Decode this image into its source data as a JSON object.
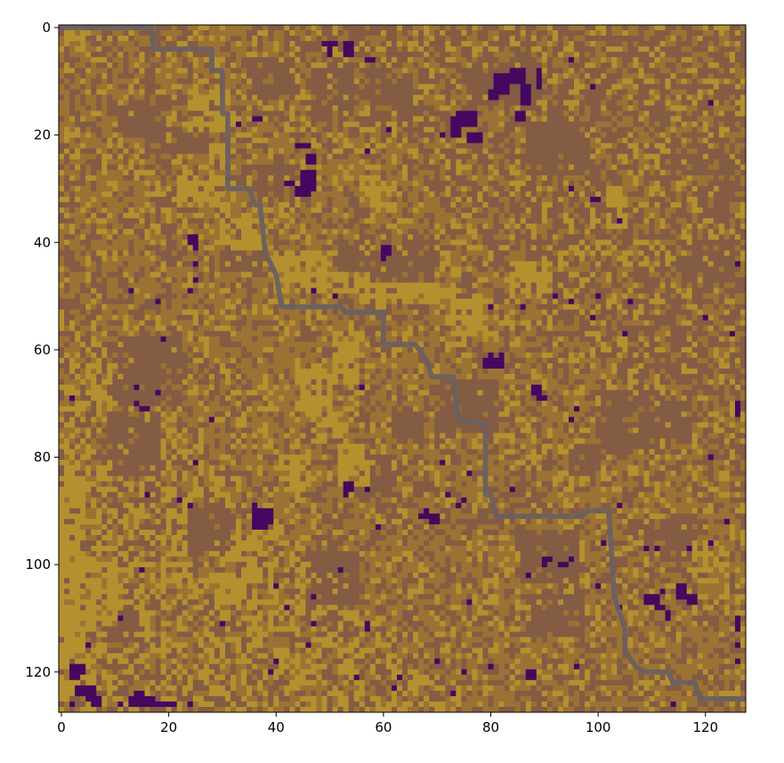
{
  "chart_data": {
    "type": "heatmap",
    "title": "",
    "xlabel": "",
    "ylabel": "",
    "grid_size": [
      128,
      128
    ],
    "xlim": [
      0,
      127
    ],
    "ylim": [
      127,
      0
    ],
    "x_ticks": [
      0,
      20,
      40,
      60,
      80,
      100,
      120
    ],
    "y_ticks": [
      0,
      20,
      40,
      60,
      80,
      100,
      120
    ],
    "x_tick_labels": [
      "0",
      "20",
      "40",
      "60",
      "80",
      "100",
      "120"
    ],
    "y_tick_labels": [
      "0",
      "20",
      "40",
      "60",
      "80",
      "100",
      "120"
    ],
    "grid": false,
    "legend": "none",
    "colors": {
      "light": "#b5902f",
      "mid": "#9c7234",
      "dark": "#835c43",
      "obstacle": "#45085f",
      "path": "#6a6062"
    },
    "path": {
      "points": [
        [
          0,
          0
        ],
        [
          17,
          0
        ],
        [
          17,
          4
        ],
        [
          28,
          4
        ],
        [
          28,
          8
        ],
        [
          30,
          8
        ],
        [
          30,
          16
        ],
        [
          31,
          16
        ],
        [
          31,
          30
        ],
        [
          35,
          30
        ],
        [
          36,
          33
        ],
        [
          37,
          33
        ],
        [
          38,
          42
        ],
        [
          40,
          46
        ],
        [
          41,
          52
        ],
        [
          52,
          52
        ],
        [
          53,
          53
        ],
        [
          60,
          53
        ],
        [
          60,
          59
        ],
        [
          66,
          59
        ],
        [
          68,
          62
        ],
        [
          69,
          65
        ],
        [
          73,
          65
        ],
        [
          74,
          73
        ],
        [
          79,
          74
        ],
        [
          79,
          87
        ],
        [
          80,
          87
        ],
        [
          81,
          91
        ],
        [
          97,
          91
        ],
        [
          98,
          90
        ],
        [
          102,
          90
        ],
        [
          103,
          106
        ],
        [
          105,
          112
        ],
        [
          105,
          116
        ],
        [
          107,
          119
        ],
        [
          109,
          120
        ],
        [
          113,
          120
        ],
        [
          114,
          122
        ],
        [
          118,
          122
        ],
        [
          119,
          125
        ],
        [
          127,
          125
        ]
      ]
    },
    "regions": {
      "dark": [
        [
          10,
          14,
          10,
          7
        ],
        [
          16,
          19,
          12,
          5
        ],
        [
          35,
          6,
          9,
          8
        ],
        [
          47,
          8,
          8,
          10
        ],
        [
          58,
          10,
          8,
          8
        ],
        [
          77,
          6,
          12,
          8
        ],
        [
          87,
          18,
          12,
          10
        ],
        [
          37,
          26,
          10,
          6
        ],
        [
          30,
          40,
          8,
          6
        ],
        [
          60,
          40,
          10,
          10
        ],
        [
          52,
          42,
          8,
          6
        ],
        [
          11,
          58,
          12,
          13
        ],
        [
          9,
          72,
          10,
          12
        ],
        [
          70,
          66,
          12,
          10
        ],
        [
          100,
          68,
          12,
          12
        ],
        [
          110,
          70,
          8,
          8
        ],
        [
          85,
          94,
          12,
          10
        ],
        [
          88,
          106,
          10,
          8
        ],
        [
          8,
          109,
          7,
          6
        ],
        [
          110,
          92,
          10,
          8
        ],
        [
          55,
          80,
          8,
          8
        ],
        [
          62,
          72,
          6,
          6
        ],
        [
          46,
          98,
          10,
          10
        ],
        [
          24,
          90,
          8,
          8
        ],
        [
          95,
          78,
          6,
          6
        ],
        [
          116,
          40,
          10,
          8
        ]
      ],
      "light": [
        [
          0,
          84,
          5,
          40
        ],
        [
          3,
          100,
          8,
          12
        ],
        [
          1,
          118,
          6,
          7
        ],
        [
          24,
          12,
          8,
          8
        ],
        [
          22,
          28,
          9,
          6
        ],
        [
          28,
          22,
          4,
          4
        ],
        [
          30,
          36,
          8,
          6
        ],
        [
          40,
          42,
          10,
          8
        ],
        [
          44,
          46,
          14,
          4
        ],
        [
          56,
          48,
          16,
          4
        ],
        [
          73,
          51,
          7,
          7
        ],
        [
          51,
          57,
          5,
          10
        ],
        [
          44,
          64,
          7,
          8
        ],
        [
          47,
          72,
          6,
          6
        ],
        [
          41,
          80,
          6,
          8
        ],
        [
          52,
          78,
          6,
          8
        ],
        [
          33,
          95,
          4,
          12
        ],
        [
          29,
          102,
          5,
          6
        ],
        [
          1,
          0,
          4,
          6
        ],
        [
          56,
          28,
          6,
          6
        ],
        [
          84,
          44,
          8,
          6
        ],
        [
          102,
          30,
          4,
          8
        ],
        [
          118,
          96,
          6,
          6
        ]
      ],
      "obstacle": [
        [
          49,
          3,
          3,
          1
        ],
        [
          50,
          4,
          1,
          2
        ],
        [
          53,
          3,
          2,
          3
        ],
        [
          57,
          6,
          2,
          1
        ],
        [
          84,
          8,
          3,
          3
        ],
        [
          81,
          9,
          3,
          4
        ],
        [
          89,
          8,
          1,
          4
        ],
        [
          86,
          11,
          2,
          4
        ],
        [
          80,
          12,
          2,
          2
        ],
        [
          74,
          16,
          4,
          3
        ],
        [
          73,
          17,
          2,
          4
        ],
        [
          76,
          20,
          3,
          2
        ],
        [
          85,
          16,
          2,
          2
        ],
        [
          95,
          6,
          1,
          1
        ],
        [
          99,
          11,
          1,
          1
        ],
        [
          36,
          17,
          2,
          1
        ],
        [
          33,
          18,
          1,
          1
        ],
        [
          44,
          22,
          3,
          1
        ],
        [
          46,
          24,
          2,
          2
        ],
        [
          45,
          27,
          3,
          3
        ],
        [
          44,
          30,
          3,
          2
        ],
        [
          47,
          28,
          1,
          3
        ],
        [
          42,
          29,
          2,
          1
        ],
        [
          57,
          23,
          1,
          1
        ],
        [
          61,
          19,
          1,
          1
        ],
        [
          71,
          20,
          1,
          1
        ],
        [
          95,
          30,
          1,
          1
        ],
        [
          99,
          32,
          2,
          1
        ],
        [
          104,
          36,
          1,
          1
        ],
        [
          121,
          14,
          1,
          1
        ],
        [
          24,
          39,
          2,
          2
        ],
        [
          25,
          41,
          1,
          1
        ],
        [
          60,
          41,
          2,
          2
        ],
        [
          60,
          43,
          1,
          1
        ],
        [
          25,
          44,
          1,
          1
        ],
        [
          25,
          47,
          1,
          1
        ],
        [
          24,
          49,
          1,
          1
        ],
        [
          18,
          51,
          1,
          1
        ],
        [
          13,
          49,
          1,
          1
        ],
        [
          19,
          58,
          1,
          1
        ],
        [
          47,
          49,
          1,
          1
        ],
        [
          51,
          50,
          1,
          1
        ],
        [
          80,
          52,
          1,
          1
        ],
        [
          86,
          52,
          1,
          1
        ],
        [
          92,
          50,
          1,
          1
        ],
        [
          95,
          51,
          1,
          1
        ],
        [
          100,
          50,
          1,
          1
        ],
        [
          106,
          51,
          1,
          1
        ],
        [
          99,
          54,
          1,
          1
        ],
        [
          105,
          57,
          1,
          1
        ],
        [
          125,
          57,
          1,
          1
        ],
        [
          120,
          54,
          1,
          1
        ],
        [
          79,
          62,
          4,
          2
        ],
        [
          80,
          61,
          1,
          1
        ],
        [
          82,
          61,
          1,
          1
        ],
        [
          88,
          67,
          2,
          2
        ],
        [
          89,
          69,
          2,
          1
        ],
        [
          96,
          71,
          1,
          1
        ],
        [
          95,
          73,
          1,
          1
        ],
        [
          14,
          67,
          1,
          1
        ],
        [
          18,
          68,
          1,
          1
        ],
        [
          14,
          70,
          1,
          1
        ],
        [
          15,
          71,
          2,
          1
        ],
        [
          28,
          73,
          1,
          1
        ],
        [
          2,
          69,
          1,
          1
        ],
        [
          56,
          67,
          1,
          1
        ],
        [
          25,
          81,
          1,
          1
        ],
        [
          71,
          81,
          1,
          1
        ],
        [
          76,
          83,
          1,
          1
        ],
        [
          53,
          85,
          2,
          2
        ],
        [
          53,
          87,
          1,
          1
        ],
        [
          57,
          86,
          1,
          1
        ],
        [
          72,
          87,
          1,
          1
        ],
        [
          75,
          88,
          1,
          1
        ],
        [
          74,
          89,
          1,
          1
        ],
        [
          84,
          86,
          1,
          1
        ],
        [
          16,
          87,
          1,
          1
        ],
        [
          22,
          88,
          1,
          1
        ],
        [
          24,
          89,
          1,
          1
        ],
        [
          36,
          89,
          1,
          1
        ],
        [
          36,
          90,
          4,
          3
        ],
        [
          36,
          93,
          3,
          1
        ],
        [
          67,
          91,
          4,
          1
        ],
        [
          68,
          90,
          1,
          1
        ],
        [
          69,
          92,
          2,
          1
        ],
        [
          59,
          93,
          1,
          1
        ],
        [
          104,
          89,
          1,
          1
        ],
        [
          90,
          99,
          2,
          1
        ],
        [
          90,
          100,
          1,
          1
        ],
        [
          95,
          99,
          1,
          1
        ],
        [
          93,
          100,
          2,
          1
        ],
        [
          87,
          102,
          1,
          1
        ],
        [
          101,
          96,
          1,
          1
        ],
        [
          109,
          97,
          1,
          1
        ],
        [
          111,
          97,
          1,
          1
        ],
        [
          117,
          97,
          1,
          1
        ],
        [
          121,
          96,
          1,
          1
        ],
        [
          124,
          92,
          1,
          1
        ],
        [
          109,
          106,
          3,
          2
        ],
        [
          111,
          108,
          2,
          1
        ],
        [
          112,
          105,
          1,
          1
        ],
        [
          115,
          104,
          2,
          3
        ],
        [
          117,
          106,
          2,
          2
        ],
        [
          113,
          109,
          1,
          2
        ],
        [
          15,
          101,
          1,
          1
        ],
        [
          52,
          101,
          1,
          1
        ],
        [
          40,
          104,
          1,
          1
        ],
        [
          47,
          106,
          1,
          1
        ],
        [
          42,
          108,
          1,
          1
        ],
        [
          76,
          107,
          1,
          1
        ],
        [
          100,
          104,
          1,
          1
        ],
        [
          104,
          108,
          1,
          1
        ],
        [
          11,
          110,
          1,
          1
        ],
        [
          5,
          115,
          1,
          1
        ],
        [
          30,
          111,
          1,
          1
        ],
        [
          47,
          111,
          1,
          1
        ],
        [
          57,
          111,
          1,
          2
        ],
        [
          46,
          115,
          1,
          1
        ],
        [
          39,
          120,
          1,
          1
        ],
        [
          40,
          118,
          1,
          1
        ],
        [
          55,
          121,
          1,
          1
        ],
        [
          62,
          123,
          1,
          1
        ],
        [
          70,
          118,
          1,
          1
        ],
        [
          75,
          120,
          1,
          1
        ],
        [
          63,
          121,
          1,
          1
        ],
        [
          73,
          124,
          1,
          1
        ],
        [
          80,
          119,
          1,
          1
        ],
        [
          87,
          120,
          2,
          2
        ],
        [
          96,
          119,
          1,
          1
        ],
        [
          126,
          110,
          1,
          3
        ],
        [
          126,
          115,
          1,
          1
        ],
        [
          126,
          118,
          1,
          1
        ],
        [
          126,
          70,
          1,
          3
        ],
        [
          126,
          44,
          1,
          1
        ],
        [
          121,
          80,
          1,
          1
        ],
        [
          2,
          119,
          3,
          2
        ],
        [
          2,
          121,
          2,
          1
        ],
        [
          3,
          123,
          4,
          2
        ],
        [
          5,
          125,
          3,
          1
        ],
        [
          6,
          126,
          2,
          1
        ],
        [
          13,
          125,
          5,
          2
        ],
        [
          14,
          124,
          2,
          1
        ],
        [
          18,
          126,
          4,
          1
        ],
        [
          11,
          126,
          1,
          1
        ],
        [
          2,
          126,
          1,
          1
        ],
        [
          24,
          126,
          1,
          1
        ],
        [
          114,
          126,
          1,
          1
        ]
      ]
    }
  }
}
